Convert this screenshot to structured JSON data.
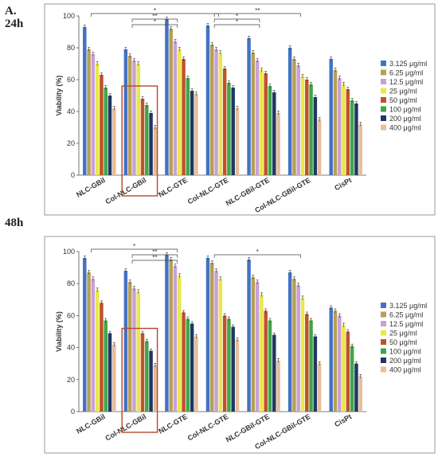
{
  "figure": {
    "panel_label": "A."
  },
  "chart_data": [
    {
      "type": "bar",
      "panel": "24h",
      "ylabel": "Viability (%)",
      "ylim": [
        0,
        100
      ],
      "yticks": [
        0,
        20,
        40,
        60,
        80,
        100
      ],
      "categories": [
        "NLC-GBil",
        "Col-NLC-GBil",
        "NLC-GTE",
        "Col-NLC-GTE",
        "NLC-GBil-GTE",
        "Col-NLC-GBil-GTE",
        "CisPt"
      ],
      "series": [
        {
          "name": "3.125 μg/ml",
          "color": "#4472C4",
          "values": [
            93,
            79,
            98,
            94,
            86,
            80,
            73
          ]
        },
        {
          "name": "6.25 μg/ml",
          "color": "#B5A055",
          "values": [
            79,
            75,
            92,
            82,
            77,
            73,
            66
          ]
        },
        {
          "name": "12.5 μg/ml",
          "color": "#C9A0D8",
          "values": [
            76,
            72,
            84,
            79,
            72,
            69,
            61
          ]
        },
        {
          "name": "25 μg/ml",
          "color": "#E8E84A",
          "values": [
            70,
            70,
            79,
            77,
            66,
            62,
            57
          ]
        },
        {
          "name": "50 μg/ml",
          "color": "#C0522A",
          "values": [
            63,
            48,
            73,
            67,
            64,
            60,
            54
          ]
        },
        {
          "name": "100 μg/ml",
          "color": "#3FA648",
          "values": [
            55,
            44,
            61,
            58,
            56,
            57,
            47
          ]
        },
        {
          "name": "200 μg/ml",
          "color": "#1F3864",
          "values": [
            50,
            39,
            53,
            55,
            52,
            49,
            45
          ]
        },
        {
          "name": "400 μg/ml",
          "color": "#E6BE9A",
          "values": [
            42,
            30,
            51,
            42,
            39,
            35,
            32
          ]
        }
      ],
      "significance": [
        {
          "from": 0,
          "to": 3,
          "level": 0,
          "label": "*"
        },
        {
          "from": 1,
          "to": 2,
          "level": 1,
          "label": "**"
        },
        {
          "from": 1,
          "to": 2,
          "level": 2,
          "label": "*"
        },
        {
          "from": 3,
          "to": 5,
          "level": 0,
          "label": "**"
        },
        {
          "from": 3,
          "to": 4,
          "level": 1,
          "label": "*"
        },
        {
          "from": 3,
          "to": 4,
          "level": 2,
          "label": "*"
        }
      ],
      "highlight_category": 1
    },
    {
      "type": "bar",
      "panel": "48h",
      "ylabel": "Viability (%)",
      "ylim": [
        0,
        100
      ],
      "yticks": [
        0,
        20,
        40,
        60,
        80,
        100
      ],
      "categories": [
        "NLC-GBil",
        "Col-NLC-GBil",
        "NLC-GTE",
        "Col-NLC-GTE",
        "NLC-GBil-GTE",
        "Col-NLC-GBil-GTE",
        "CisPt"
      ],
      "series": [
        {
          "name": "3.125 μg/ml",
          "color": "#4472C4",
          "values": [
            96,
            88,
            98,
            96,
            95,
            87,
            65
          ]
        },
        {
          "name": "6.25 μg/ml",
          "color": "#B5A055",
          "values": [
            87,
            81,
            95,
            93,
            84,
            83,
            63
          ]
        },
        {
          "name": "12.5 μg/ml",
          "color": "#C9A0D8",
          "values": [
            83,
            77,
            91,
            88,
            81,
            79,
            60
          ]
        },
        {
          "name": "25 μg/ml",
          "color": "#E8E84A",
          "values": [
            76,
            75,
            85,
            83,
            73,
            71,
            54
          ]
        },
        {
          "name": "50 μg/ml",
          "color": "#C0522A",
          "values": [
            68,
            49,
            62,
            60,
            63,
            61,
            50
          ]
        },
        {
          "name": "100 μg/ml",
          "color": "#3FA648",
          "values": [
            57,
            44,
            58,
            58,
            57,
            57,
            41
          ]
        },
        {
          "name": "200 μg/ml",
          "color": "#1F3864",
          "values": [
            49,
            38,
            55,
            53,
            48,
            47,
            30
          ]
        },
        {
          "name": "400 μg/ml",
          "color": "#E6BE9A",
          "values": [
            42,
            29,
            47,
            45,
            32,
            30,
            22
          ]
        }
      ],
      "significance": [
        {
          "from": 0,
          "to": 2,
          "level": 0,
          "label": "*"
        },
        {
          "from": 1,
          "to": 2,
          "level": 1,
          "label": "**"
        },
        {
          "from": 1,
          "to": 2,
          "level": 2,
          "label": "**"
        },
        {
          "from": 3,
          "to": 5,
          "level": 1,
          "label": "*"
        }
      ],
      "highlight_category": 1
    }
  ]
}
